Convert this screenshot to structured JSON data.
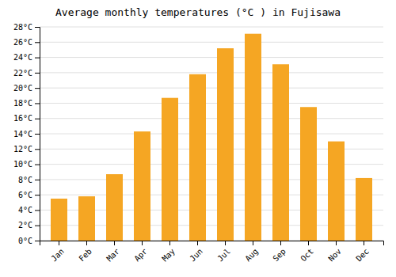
{
  "chart_data": {
    "type": "bar",
    "title": "Average monthly temperatures (°C ) in Fujisawa",
    "categories": [
      "Jan",
      "Feb",
      "Mar",
      "Apr",
      "May",
      "Jun",
      "Jul",
      "Aug",
      "Sep",
      "Oct",
      "Nov",
      "Dec"
    ],
    "values": [
      5.5,
      5.8,
      8.7,
      14.3,
      18.7,
      21.8,
      25.2,
      27.1,
      23.1,
      17.5,
      13.0,
      8.2
    ],
    "color": "#F5A623",
    "ylim": [
      0,
      28
    ],
    "yticks": [
      {
        "value": 0,
        "label": "0°C"
      },
      {
        "value": 2,
        "label": "2°C"
      },
      {
        "value": 4,
        "label": "4°C"
      },
      {
        "value": 6,
        "label": "6°C"
      },
      {
        "value": 8,
        "label": "8°C"
      },
      {
        "value": 10,
        "label": "10°C"
      },
      {
        "value": 12,
        "label": "12°C"
      },
      {
        "value": 14,
        "label": "14°C"
      },
      {
        "value": 16,
        "label": "16°C"
      },
      {
        "value": 18,
        "label": "18°C"
      },
      {
        "value": 20,
        "label": "20°C"
      },
      {
        "value": 22,
        "label": "22°C"
      },
      {
        "value": 24,
        "label": "24°C"
      },
      {
        "value": 26,
        "label": "26°C"
      },
      {
        "value": 28,
        "label": "28°C"
      }
    ],
    "grid": true
  }
}
